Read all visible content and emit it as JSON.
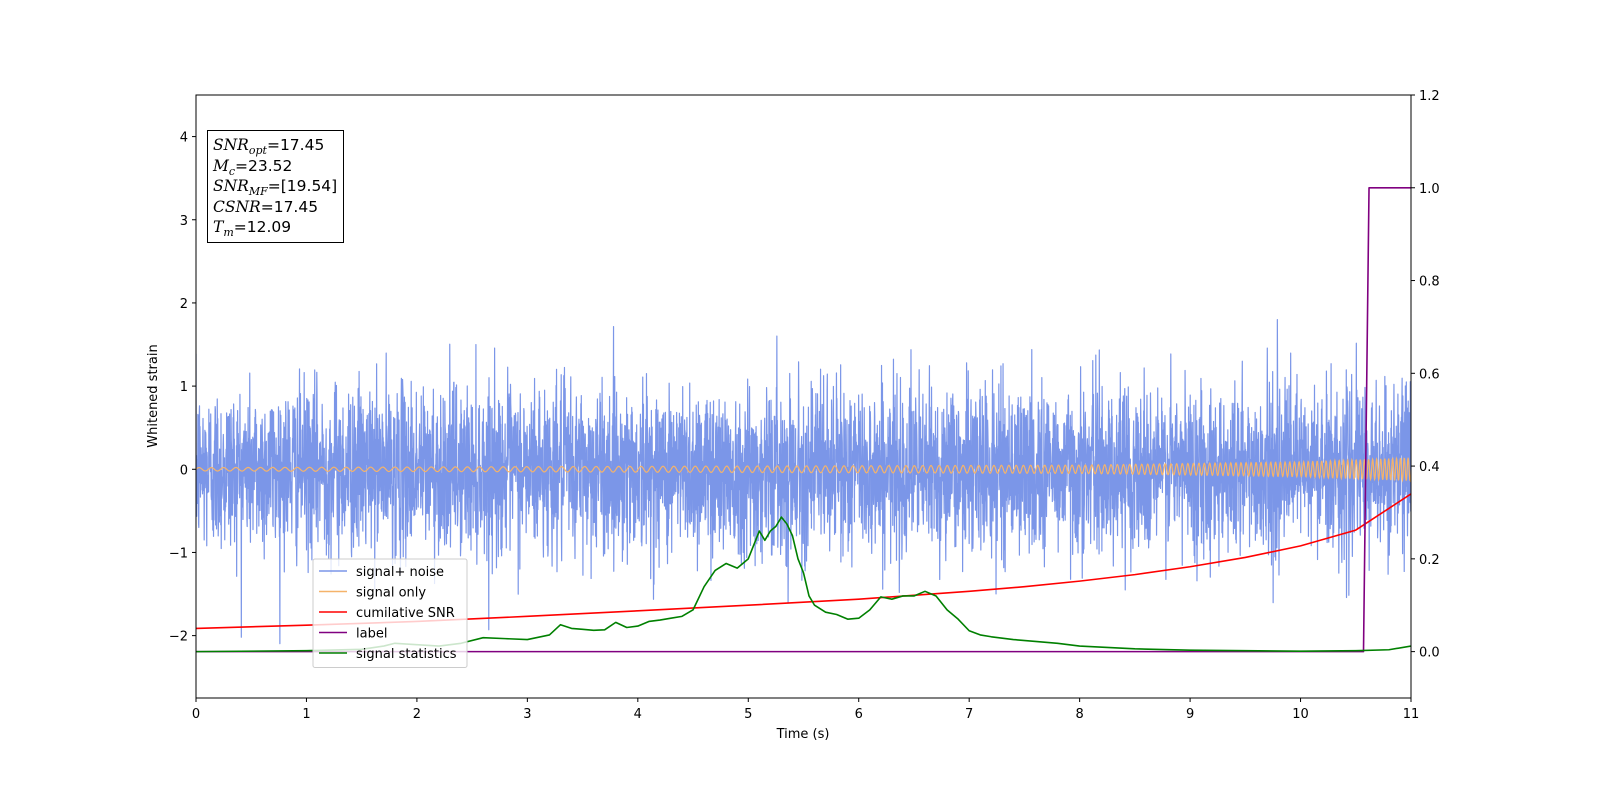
{
  "chart_data": {
    "type": "line",
    "xlabel": "Time (s)",
    "ylabel": "Whitened strain",
    "xlim": [
      0,
      11
    ],
    "ylim": [
      -2.75,
      4.5
    ],
    "y2lim": [
      -0.1,
      1.2
    ],
    "x_ticks": [
      "0",
      "1",
      "2",
      "3",
      "4",
      "5",
      "6",
      "7",
      "8",
      "9",
      "10",
      "11"
    ],
    "y_ticks": [
      "−2",
      "−1",
      "0",
      "1",
      "2",
      "3",
      "4"
    ],
    "y_tick_values": [
      -2,
      -1,
      0,
      1,
      2,
      3,
      4
    ],
    "y2_ticks": [
      "0.0",
      "0.2",
      "0.4",
      "0.6",
      "0.8",
      "1.0",
      "1.2"
    ],
    "y2_tick_values": [
      0.0,
      0.2,
      0.4,
      0.6,
      0.8,
      1.0,
      1.2
    ],
    "grid": false,
    "legend_position": "lower-left",
    "annotation": {
      "snr_opt": {
        "symbol": "SNR",
        "sub": "opt",
        "value": "=17.45"
      },
      "mc": {
        "symbol": "M",
        "sub": "c",
        "value": "=23.52"
      },
      "snr_mf": {
        "symbol": "SNR",
        "sub": "MF",
        "value": "=[19.54]"
      },
      "csnr": {
        "symbol": "CSNR",
        "sub": "",
        "value": "=17.45"
      },
      "tm": {
        "symbol": "T",
        "sub": "m",
        "value": "=12.09"
      }
    },
    "series": [
      {
        "name": "signal+ noise",
        "color": "#7b96e8",
        "axis": "left",
        "style": "noise",
        "description_values": {
          "amplitude_std": 0.5,
          "max_peak": 1.8,
          "min_trough": -2.4
        }
      },
      {
        "name": "signal only",
        "color": "#f5b36a",
        "axis": "left",
        "style": "chirp",
        "envelope": {
          "x": [
            0,
            8,
            10,
            11
          ],
          "amp": [
            0.02,
            0.05,
            0.09,
            0.14
          ]
        }
      },
      {
        "name": "cumilative SNR",
        "color": "#ff0000",
        "axis": "right",
        "x": [
          0,
          1,
          2,
          3,
          4,
          5,
          6,
          7,
          7.5,
          8,
          8.5,
          9,
          9.5,
          10,
          10.5,
          11
        ],
        "values": [
          0.05,
          0.057,
          0.065,
          0.076,
          0.088,
          0.1,
          0.113,
          0.13,
          0.14,
          0.152,
          0.166,
          0.183,
          0.203,
          0.228,
          0.262,
          0.34
        ]
      },
      {
        "name": "label",
        "color": "#800080",
        "axis": "right",
        "x": [
          0,
          10.57,
          10.62,
          11
        ],
        "values": [
          0.0,
          0.0,
          1.0,
          1.0
        ]
      },
      {
        "name": "signal statistics",
        "color": "#008000",
        "axis": "right",
        "x": [
          0,
          1,
          1.5,
          1.7,
          1.8,
          2.0,
          2.2,
          2.4,
          2.6,
          2.8,
          3.0,
          3.2,
          3.3,
          3.4,
          3.5,
          3.6,
          3.7,
          3.8,
          3.9,
          4.0,
          4.1,
          4.2,
          4.3,
          4.4,
          4.5,
          4.6,
          4.7,
          4.8,
          4.9,
          5.0,
          5.1,
          5.15,
          5.2,
          5.25,
          5.3,
          5.35,
          5.4,
          5.45,
          5.5,
          5.55,
          5.6,
          5.7,
          5.8,
          5.9,
          6.0,
          6.1,
          6.2,
          6.3,
          6.4,
          6.5,
          6.6,
          6.7,
          6.8,
          6.9,
          7.0,
          7.1,
          7.2,
          7.4,
          7.6,
          7.8,
          8.0,
          8.5,
          9.0,
          9.5,
          10.0,
          10.5,
          10.8,
          11
        ],
        "values": [
          0.0,
          0.002,
          0.005,
          0.012,
          0.018,
          0.015,
          0.012,
          0.018,
          0.03,
          0.028,
          0.026,
          0.036,
          0.058,
          0.05,
          0.048,
          0.046,
          0.047,
          0.063,
          0.052,
          0.055,
          0.065,
          0.068,
          0.072,
          0.076,
          0.09,
          0.14,
          0.175,
          0.19,
          0.18,
          0.2,
          0.26,
          0.24,
          0.26,
          0.27,
          0.29,
          0.275,
          0.25,
          0.2,
          0.17,
          0.12,
          0.1,
          0.085,
          0.08,
          0.07,
          0.072,
          0.09,
          0.118,
          0.113,
          0.12,
          0.12,
          0.13,
          0.12,
          0.09,
          0.07,
          0.045,
          0.036,
          0.032,
          0.026,
          0.022,
          0.018,
          0.012,
          0.006,
          0.003,
          0.002,
          0.001,
          0.002,
          0.004,
          0.012
        ]
      }
    ]
  }
}
